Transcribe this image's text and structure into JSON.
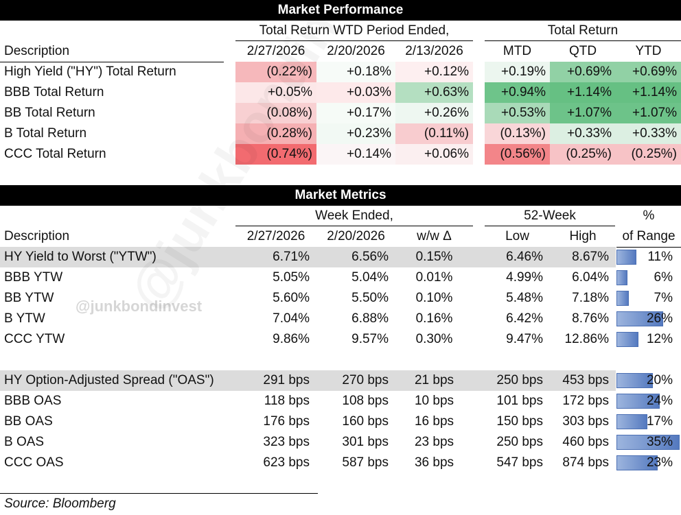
{
  "performance": {
    "title": "Market Performance",
    "group_wtd": "Total Return WTD Period Ended,",
    "group_total": "Total Return",
    "desc_header": "Description",
    "col_headers": [
      "2/27/2026",
      "2/20/2026",
      "2/13/2026",
      "MTD",
      "QTD",
      "YTD"
    ],
    "rows": [
      {
        "label": "High Yield (\"HY\") Total Return",
        "cells": [
          {
            "v": "(0.22%)",
            "bg": "#f6b8bb"
          },
          {
            "v": "+0.18%",
            "bg": "#f7fbf8"
          },
          {
            "v": "+0.12%",
            "bg": "#fdeff0"
          },
          {
            "v": "+0.19%",
            "bg": "#ecf6ef"
          },
          {
            "v": "+0.69%",
            "bg": "#91d1a5"
          },
          {
            "v": "+0.69%",
            "bg": "#91d1a5"
          }
        ]
      },
      {
        "label": "BBB Total Return",
        "cells": [
          {
            "v": "+0.05%",
            "bg": "#fce7e8"
          },
          {
            "v": "+0.03%",
            "bg": "#fde9ea"
          },
          {
            "v": "+0.63%",
            "bg": "#b4dfc1"
          },
          {
            "v": "+0.94%",
            "bg": "#6ec48a"
          },
          {
            "v": "+1.14%",
            "bg": "#66c083"
          },
          {
            "v": "+1.14%",
            "bg": "#66c083"
          }
        ]
      },
      {
        "label": "BB Total Return",
        "cells": [
          {
            "v": "(0.08%)",
            "bg": "#f8d0d2"
          },
          {
            "v": "+0.17%",
            "bg": "#f6fbf7"
          },
          {
            "v": "+0.26%",
            "bg": "#eef7f1"
          },
          {
            "v": "+0.53%",
            "bg": "#a9dab8"
          },
          {
            "v": "+1.07%",
            "bg": "#6dc389"
          },
          {
            "v": "+1.07%",
            "bg": "#6dc389"
          }
        ]
      },
      {
        "label": "B Total Return",
        "cells": [
          {
            "v": "(0.28%)",
            "bg": "#f5b0b3"
          },
          {
            "v": "+0.23%",
            "bg": "#f2f9f4"
          },
          {
            "v": "(0.11%)",
            "bg": "#f8cccf"
          },
          {
            "v": "(0.13%)",
            "bg": "#f9d6d8"
          },
          {
            "v": "+0.33%",
            "bg": "#dcefe2"
          },
          {
            "v": "+0.33%",
            "bg": "#dcefe2"
          }
        ]
      },
      {
        "label": "CCC Total Return",
        "cells": [
          {
            "v": "(0.74%)",
            "bg": "#f26b70"
          },
          {
            "v": "+0.14%",
            "bg": "#fbf5f6"
          },
          {
            "v": "+0.06%",
            "bg": "#fbeff0"
          },
          {
            "v": "(0.56%)",
            "bg": "#f38589"
          },
          {
            "v": "(0.25%)",
            "bg": "#f7c3c6"
          },
          {
            "v": "(0.25%)",
            "bg": "#f7c3c6"
          }
        ]
      }
    ]
  },
  "metrics": {
    "title": "Market Metrics",
    "group_week": "Week Ended,",
    "group_52": "52-Week",
    "pct_header_top": "%",
    "pct_header_bottom": "of Range",
    "desc_header": "Description",
    "col_headers": [
      "2/27/2026",
      "2/20/2026",
      "w/w Δ",
      "Low",
      "High"
    ],
    "ytw_rows": [
      {
        "label": "HY Yield to Worst (\"YTW\")",
        "values": [
          "6.71%",
          "6.56%",
          "0.15%",
          "6.46%",
          "8.67%"
        ],
        "range_label": "11%",
        "range_fraction": 0.11,
        "shaded": true
      },
      {
        "label": "BBB YTW",
        "values": [
          "5.05%",
          "5.04%",
          "0.01%",
          "4.99%",
          "6.04%"
        ],
        "range_label": "6%",
        "range_fraction": 0.06,
        "shaded": false
      },
      {
        "label": "BB YTW",
        "values": [
          "5.60%",
          "5.50%",
          "0.10%",
          "5.48%",
          "7.18%"
        ],
        "range_label": "7%",
        "range_fraction": 0.07,
        "shaded": false
      },
      {
        "label": "B YTW",
        "values": [
          "7.04%",
          "6.88%",
          "0.16%",
          "6.42%",
          "8.76%"
        ],
        "range_label": "26%",
        "range_fraction": 0.26,
        "shaded": false
      },
      {
        "label": "CCC YTW",
        "values": [
          "9.86%",
          "9.57%",
          "0.30%",
          "9.47%",
          "12.86%"
        ],
        "range_label": "12%",
        "range_fraction": 0.12,
        "shaded": false
      }
    ],
    "oas_rows": [
      {
        "label": "HY Option-Adjusted Spread (\"OAS\")",
        "values": [
          "291 bps",
          "270 bps",
          "21 bps",
          "250 bps",
          "453 bps"
        ],
        "range_label": "20%",
        "range_fraction": 0.2,
        "shaded": true
      },
      {
        "label": "BBB OAS",
        "values": [
          "118 bps",
          "108 bps",
          "10 bps",
          "101 bps",
          "172 bps"
        ],
        "range_label": "24%",
        "range_fraction": 0.24,
        "shaded": false
      },
      {
        "label": "BB OAS",
        "values": [
          "176 bps",
          "160 bps",
          "16 bps",
          "150 bps",
          "303 bps"
        ],
        "range_label": "17%",
        "range_fraction": 0.17,
        "shaded": false
      },
      {
        "label": "B OAS",
        "values": [
          "323 bps",
          "301 bps",
          "23 bps",
          "250 bps",
          "460 bps"
        ],
        "range_label": "35%",
        "range_fraction": 0.35,
        "shaded": false
      },
      {
        "label": "CCC OAS",
        "values": [
          "623 bps",
          "587 bps",
          "36 bps",
          "547 bps",
          "874 bps"
        ],
        "range_label": "23%",
        "range_fraction": 0.23,
        "shaded": false
      }
    ]
  },
  "watermark": "@junkbondinvest",
  "source": "Source: Bloomberg"
}
